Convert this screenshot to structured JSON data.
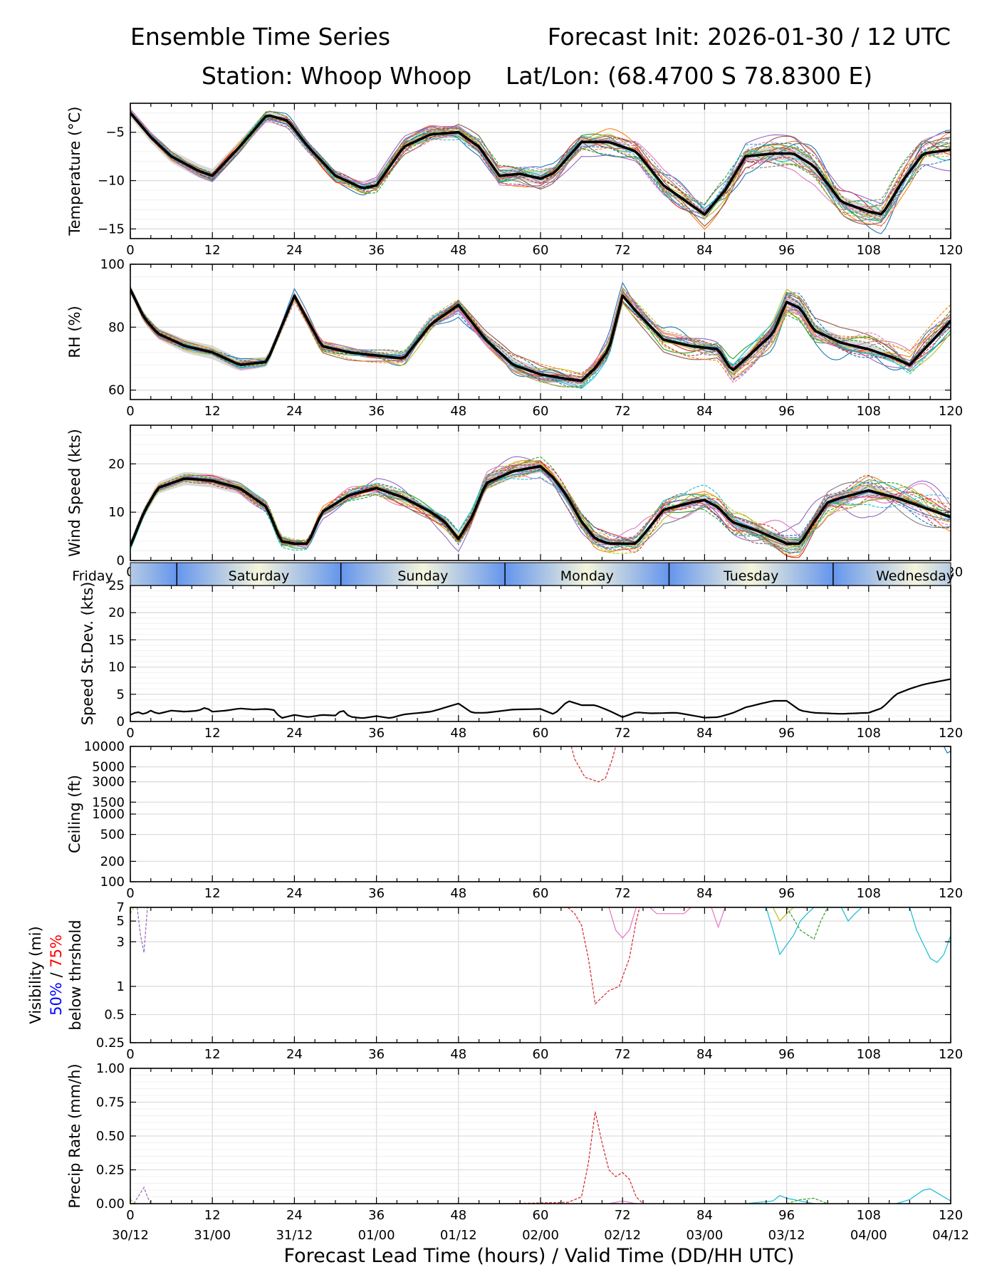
{
  "header": {
    "title_left": "Ensemble Time Series",
    "title_right": "Forecast Init: 2026-01-30 / 12 UTC",
    "station": "Station: Whoop Whoop",
    "latlon": "Lat/Lon: (68.4700 S 78.8300 E)"
  },
  "footer": {
    "xlabel": "Forecast Lead Time (hours) / Valid Time (DD/HH UTC)",
    "valid_times": [
      "30/12",
      "31/00",
      "31/12",
      "01/00",
      "01/12",
      "02/00",
      "02/12",
      "03/00",
      "03/12",
      "04/00",
      "04/12"
    ]
  },
  "day_band": {
    "labels": [
      "Friday",
      "Saturday",
      "Sunday",
      "Monday",
      "Tuesday",
      "Wednesday"
    ],
    "colors": {
      "light": "#f5f5dc",
      "dark": "#6495ed"
    }
  },
  "colors": {
    "mean": "#000000",
    "spread": "#c8c8c8",
    "grid": "#dddddd",
    "members": [
      "#1f77b4",
      "#ff7f0e",
      "#2ca02c",
      "#d62728",
      "#9467bd",
      "#8c564b",
      "#e377c2",
      "#7f7f7f",
      "#bcbd22",
      "#17becf"
    ]
  },
  "chart_data": [
    {
      "id": "temp",
      "type": "line",
      "ylabel": "Temperature (°C)",
      "x_ticks": [
        0,
        12,
        24,
        36,
        48,
        60,
        72,
        84,
        96,
        108,
        120
      ],
      "ylim": [
        -16,
        -2
      ],
      "y_ticks": [
        -15,
        -10,
        -5
      ],
      "mean": {
        "x": [
          0,
          3,
          6,
          10,
          12,
          16,
          20,
          23,
          26,
          30,
          34,
          36,
          40,
          44,
          48,
          51,
          54,
          57,
          60,
          62,
          66,
          70,
          74,
          78,
          82,
          84,
          87,
          90,
          94,
          97,
          100,
          104,
          108,
          110,
          113,
          116,
          120
        ],
        "y": [
          -3,
          -5.5,
          -7.5,
          -9,
          -9.5,
          -6.5,
          -3.2,
          -3.8,
          -6.5,
          -9.5,
          -10.8,
          -10.5,
          -6.5,
          -5.2,
          -5,
          -6.5,
          -9.5,
          -9.3,
          -9.8,
          -9.2,
          -6,
          -6,
          -7,
          -10.5,
          -12.5,
          -13.5,
          -11,
          -7.5,
          -7.2,
          -7.2,
          -8.5,
          -12.2,
          -13.2,
          -13.5,
          -10,
          -7.2,
          -6.8
        ]
      }
    },
    {
      "id": "rh",
      "type": "line",
      "ylabel": "RH (%)",
      "x_ticks": [
        0,
        12,
        24,
        36,
        48,
        60,
        72,
        84,
        96,
        108,
        120
      ],
      "ylim": [
        57,
        100
      ],
      "y_ticks": [
        60,
        80,
        100
      ],
      "mean": {
        "x": [
          0,
          2,
          4,
          8,
          12,
          16,
          20,
          24,
          28,
          32,
          36,
          40,
          44,
          48,
          52,
          56,
          60,
          64,
          66,
          68,
          70,
          72,
          74,
          78,
          82,
          86,
          88,
          90,
          94,
          96,
          98,
          100,
          104,
          108,
          112,
          114,
          117,
          120
        ],
        "y": [
          92,
          83,
          78,
          74,
          72,
          68,
          69,
          90,
          74,
          72,
          71,
          70,
          81,
          87,
          76,
          68,
          65,
          63.5,
          63,
          67,
          73,
          90,
          85,
          76,
          74,
          73,
          66,
          70,
          78,
          88,
          86,
          79,
          75,
          73,
          70,
          68,
          75,
          82
        ]
      }
    },
    {
      "id": "wind",
      "type": "line",
      "ylabel": "Wind Speed (kts)",
      "x_ticks": [
        0,
        12,
        24,
        36,
        48,
        60,
        72,
        84,
        96,
        108,
        120
      ],
      "ylim": [
        0,
        28
      ],
      "y_ticks": [
        0,
        10,
        20
      ],
      "mean": {
        "x": [
          0,
          2,
          4,
          8,
          12,
          16,
          20,
          22,
          24,
          26,
          28,
          32,
          36,
          40,
          44,
          46,
          48,
          50,
          52,
          56,
          60,
          62,
          64,
          66,
          68,
          70,
          72,
          74,
          78,
          82,
          84,
          86,
          88,
          92,
          96,
          98,
          100,
          102,
          104,
          108,
          112,
          116,
          120
        ],
        "y": [
          3,
          10,
          15,
          17,
          16.5,
          15,
          11,
          4,
          3.5,
          3.5,
          10,
          13.5,
          15,
          13,
          10,
          8,
          4.5,
          9,
          16,
          18.5,
          19.5,
          17,
          13,
          8,
          4.5,
          3.5,
          3.5,
          3.5,
          10.5,
          12,
          12.5,
          11,
          8,
          6,
          3.5,
          3.5,
          8,
          12,
          13,
          14.5,
          13,
          11,
          9
        ]
      }
    },
    {
      "id": "stdev",
      "type": "line",
      "ylabel": "Speed St.Dev. (kts)",
      "x_ticks": [
        0,
        12,
        24,
        36,
        48,
        60,
        72,
        84,
        96,
        108,
        120
      ],
      "ylim": [
        0,
        25
      ],
      "y_ticks": [
        0,
        5,
        10,
        15,
        20,
        25
      ],
      "mean": {
        "x": [
          0,
          1,
          2,
          3,
          4,
          6,
          8,
          10,
          11,
          12,
          14,
          16,
          18,
          20,
          21,
          22,
          24,
          26,
          28,
          30,
          31,
          32,
          34,
          36,
          38,
          40,
          44,
          48,
          50,
          52,
          56,
          60,
          62,
          64,
          66,
          68,
          70,
          72,
          74,
          76,
          80,
          84,
          86,
          88,
          90,
          94,
          96,
          98,
          100,
          104,
          108,
          110,
          112,
          114,
          116,
          118,
          120
        ],
        "y": [
          1.2,
          1.8,
          1.3,
          2,
          1.4,
          2,
          1.8,
          2,
          2.6,
          1.8,
          2,
          2.4,
          2.2,
          2.3,
          2.1,
          0.6,
          1.2,
          0.8,
          1.2,
          1.1,
          2.2,
          0.9,
          0.6,
          1,
          0.6,
          1.3,
          1.8,
          3.3,
          1.6,
          1.6,
          2.2,
          2.3,
          1.3,
          3.8,
          3,
          3,
          2,
          0.8,
          1.7,
          1.5,
          1.6,
          0.7,
          0.8,
          1.5,
          2.6,
          3.8,
          3.8,
          2,
          1.6,
          1.4,
          1.6,
          2.5,
          5,
          6,
          6.8,
          7.3,
          7.8
        ]
      }
    },
    {
      "id": "ceiling",
      "type": "line",
      "ylabel": "Ceiling (ft)",
      "x_ticks": [
        0,
        12,
        24,
        36,
        48,
        60,
        72,
        84,
        96,
        108,
        120
      ],
      "scale": "log",
      "ylim": [
        100,
        10000
      ],
      "y_ticks": [
        100,
        200,
        500,
        1000,
        1500,
        3000,
        5000,
        10000
      ],
      "y_tick_labels": [
        "100",
        "200",
        "500",
        "1000",
        "1500",
        "3000",
        "5000",
        "10000"
      ]
    },
    {
      "id": "vis",
      "type": "line",
      "ylabel": "Visibility (mi)",
      "ylabel_50": "50%",
      "ylabel_sep": " / ",
      "ylabel_75": "75%",
      "ylabel_2": "below thrshold",
      "x_ticks": [
        0,
        12,
        24,
        36,
        48,
        60,
        72,
        84,
        96,
        108,
        120
      ],
      "scale": "log",
      "ylim": [
        0.25,
        7
      ],
      "y_ticks": [
        0.25,
        0.5,
        1,
        3,
        5,
        7
      ],
      "y_tick_labels": [
        "0.25",
        "0.5",
        "1",
        "3",
        "5",
        "7"
      ]
    },
    {
      "id": "precip",
      "type": "line",
      "ylabel": "Precip Rate (mm/h)",
      "x_ticks": [
        0,
        12,
        24,
        36,
        48,
        60,
        72,
        84,
        96,
        108,
        120
      ],
      "ylim": [
        0,
        1
      ],
      "y_ticks": [
        0,
        0.25,
        0.5,
        0.75,
        1
      ],
      "y_tick_labels": [
        "0.00",
        "0.25",
        "0.50",
        "0.75",
        "1.00"
      ]
    }
  ]
}
